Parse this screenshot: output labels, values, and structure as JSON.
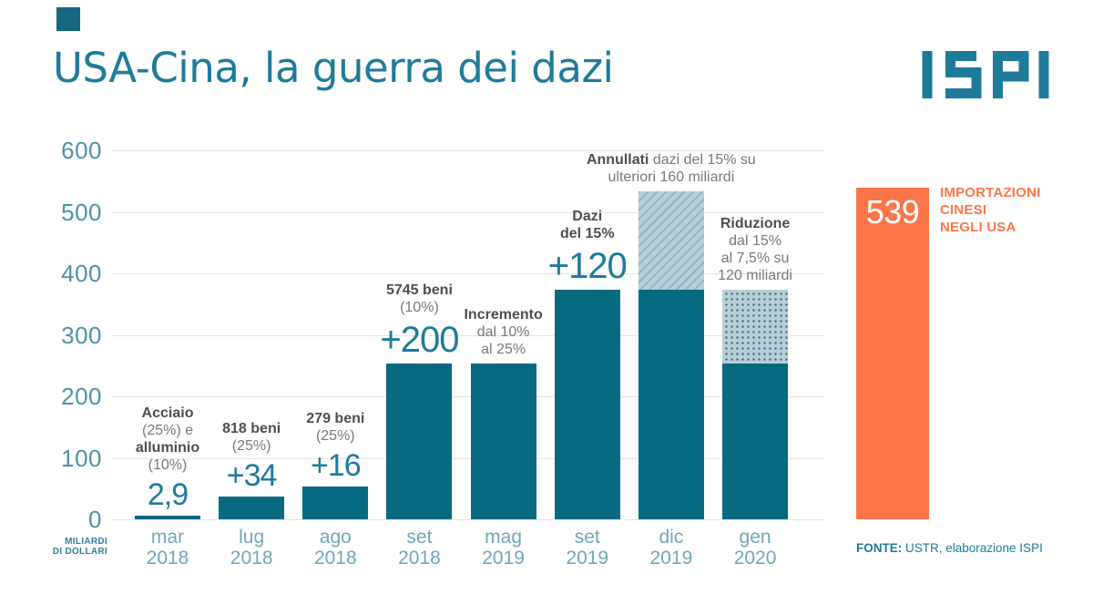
{
  "header": {
    "title": "USA-Cina, la guerra dei dazi",
    "logo_text": "ISPI"
  },
  "colors": {
    "bar_teal": "#076a80",
    "accent_teal": "#1e7b99",
    "tick_teal": "#4d93a9",
    "x_label_teal": "#72a7b8",
    "pattern_bg": "#b7ced7",
    "hatch_line": "#8fb3bf",
    "dot_color": "#3f6977",
    "note_bold_gray": "#4d4e50",
    "note_gray": "#77787a",
    "orange": "#fb7549",
    "gridline": "#e4e4e4"
  },
  "chart_data": {
    "type": "bar",
    "title": "USA-Cina, la guerra dei dazi",
    "unit_label": "MILIARDI\nDI DOLLARI",
    "ylim": [
      0,
      600
    ],
    "yticks": [
      0,
      100,
      200,
      300,
      400,
      500,
      600
    ],
    "grid": true,
    "bars": [
      {
        "month": "mar",
        "year": "2018",
        "solid": 2.9,
        "value_label": "2,9",
        "note": [
          [
            {
              "t": "Acciaio",
              "b": true
            }
          ],
          [
            {
              "t": "(25%) e",
              "b": false
            }
          ],
          [
            {
              "t": "alluminio",
              "b": true
            }
          ],
          [
            {
              "t": "(10%)",
              "b": false
            }
          ]
        ]
      },
      {
        "month": "lug",
        "year": "2018",
        "solid": 36.9,
        "increment": 34,
        "value_label": "+34",
        "note": [
          [
            {
              "t": "818 beni",
              "b": true
            }
          ],
          [
            {
              "t": "(25%)",
              "b": false
            }
          ]
        ]
      },
      {
        "month": "ago",
        "year": "2018",
        "solid": 52.9,
        "increment": 16,
        "value_label": "+16",
        "note": [
          [
            {
              "t": "279 beni",
              "b": true
            }
          ],
          [
            {
              "t": "(25%)",
              "b": false
            }
          ]
        ]
      },
      {
        "month": "set",
        "year": "2018",
        "solid": 252.9,
        "increment": 200,
        "value_label": "+200",
        "note": [
          [
            {
              "t": "5745 beni",
              "b": true
            }
          ],
          [
            {
              "t": "(10%)",
              "b": false
            }
          ]
        ]
      },
      {
        "month": "mag",
        "year": "2019",
        "solid": 252.9,
        "value_label": "",
        "note": [
          [
            {
              "t": "Incremento",
              "b": true
            }
          ],
          [
            {
              "t": "dal 10%",
              "b": false
            }
          ],
          [
            {
              "t": "al 25%",
              "b": false
            }
          ]
        ]
      },
      {
        "month": "set",
        "year": "2019",
        "solid": 372.9,
        "increment": 120,
        "value_label": "+120",
        "note": [
          [
            {
              "t": "Dazi",
              "b": true
            }
          ],
          [
            {
              "t": "del 15%",
              "b": true
            }
          ]
        ]
      },
      {
        "month": "dic",
        "year": "2019",
        "solid": 372.9,
        "pattern": {
          "style": "hatch",
          "value": 160
        },
        "value_label": "",
        "note": [
          [
            {
              "t": "Annullati",
              "b": true
            },
            {
              "t": " dazi del 15% su",
              "b": false
            }
          ],
          [
            {
              "t": "ulteriori 160 miliardi",
              "b": false
            }
          ]
        ]
      },
      {
        "month": "gen",
        "year": "2020",
        "solid": 252.9,
        "pattern": {
          "style": "dots",
          "value": 120
        },
        "value_label": "",
        "note": [
          [
            {
              "t": "Riduzione",
              "b": true
            }
          ],
          [
            {
              "t": "dal 15%",
              "b": false
            }
          ],
          [
            {
              "t": "al 7,5% su",
              "b": false
            }
          ],
          [
            {
              "t": "120 miliardi",
              "b": false
            }
          ]
        ]
      }
    ],
    "comparison": {
      "value": 539,
      "value_label": "539",
      "label": "IMPORTAZIONI\nCINESI\nNEGLI USA"
    }
  },
  "footer": {
    "source_label": "FONTE:",
    "source_text": " USTR, elaborazione ISPI"
  }
}
